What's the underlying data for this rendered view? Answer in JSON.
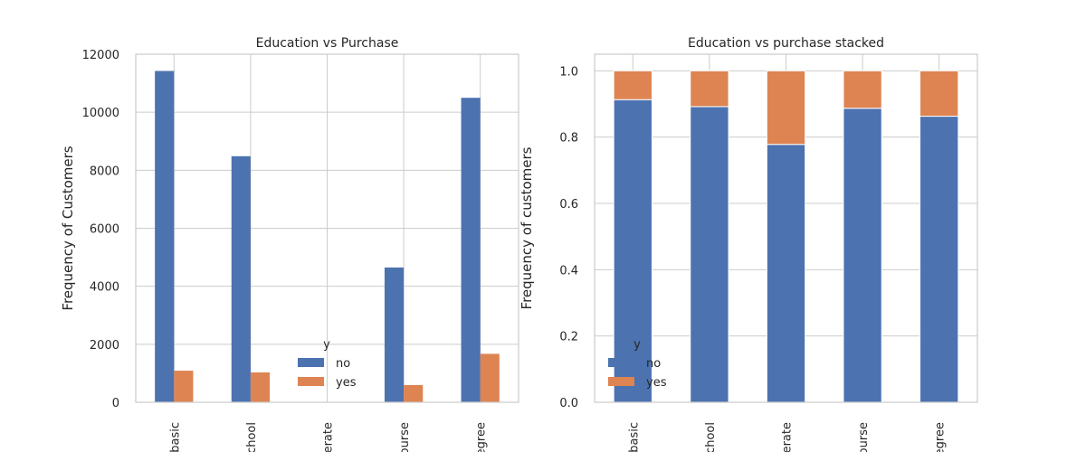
{
  "colors": {
    "no": "#4c72b0",
    "yes": "#dd8452"
  },
  "chart_data": [
    {
      "type": "bar",
      "title": "Education vs Purchase",
      "xlabel": "",
      "ylabel": "Frequency of Customers",
      "categories": [
        "basic",
        "high.school",
        "illiterate",
        "professional.course",
        "university.degree"
      ],
      "tick_labels": [
        "basic",
        "chool",
        "erate",
        "ourse",
        "egree"
      ],
      "series": [
        {
          "name": "no",
          "values": [
            11424,
            8484,
            14,
            4648,
            10498
          ]
        },
        {
          "name": "yes",
          "values": [
            1089,
            1031,
            4,
            595,
            1670
          ]
        }
      ],
      "ylim": [
        0,
        12000
      ],
      "yticks": [
        0,
        2000,
        4000,
        6000,
        8000,
        10000,
        12000
      ],
      "grid": true,
      "legend": {
        "title": "y",
        "placement": "lower-center"
      }
    },
    {
      "type": "bar",
      "stacked": true,
      "title": "Education vs purchase stacked",
      "xlabel": "",
      "ylabel": "Frequency of customers",
      "categories": [
        "basic",
        "high.school",
        "illiterate",
        "professional.course",
        "university.degree"
      ],
      "tick_labels": [
        "basic",
        "chool",
        "erate",
        "ourse",
        "egree"
      ],
      "series": [
        {
          "name": "no",
          "values": [
            0.913,
            0.892,
            0.778,
            0.887,
            0.863
          ]
        },
        {
          "name": "yes",
          "values": [
            0.087,
            0.108,
            0.222,
            0.113,
            0.137
          ]
        }
      ],
      "ylim": [
        0,
        1.05
      ],
      "yticks": [
        0.0,
        0.2,
        0.4,
        0.6,
        0.8,
        1.0
      ],
      "ytick_labels": [
        "0.0",
        "0.2",
        "0.4",
        "0.6",
        "0.8",
        "1.0"
      ],
      "grid": true,
      "legend": {
        "title": "y",
        "placement": "lower-left"
      }
    }
  ]
}
